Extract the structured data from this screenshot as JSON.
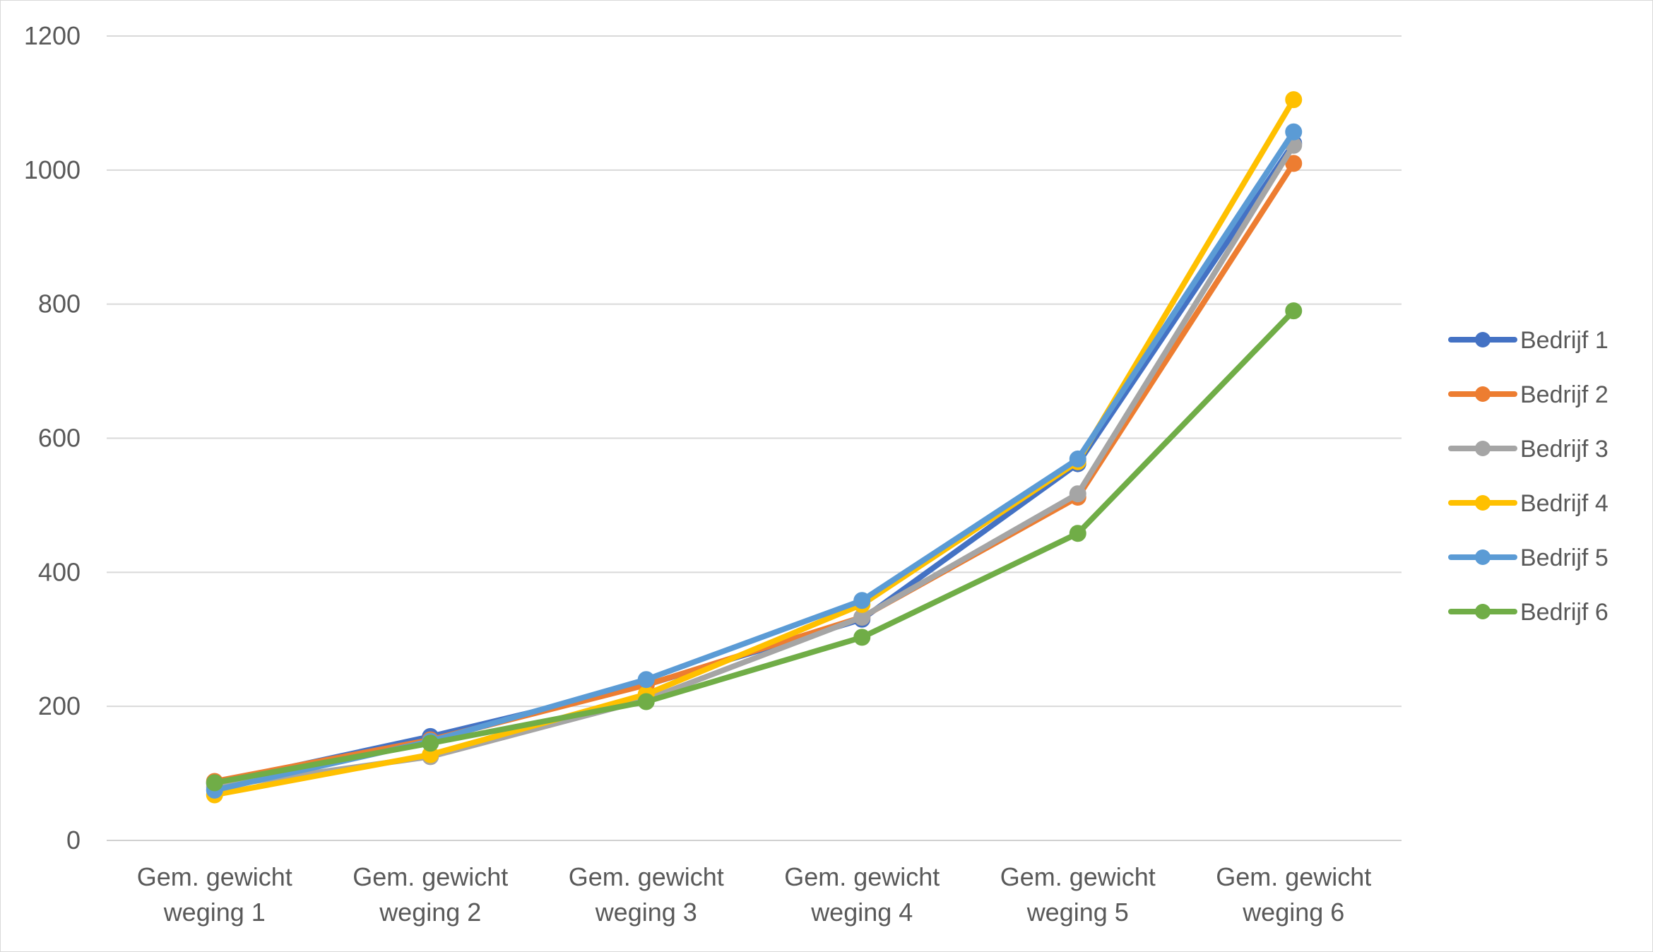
{
  "chart_data": {
    "type": "line",
    "title": "",
    "xlabel": "",
    "ylabel": "",
    "ylim": [
      0,
      1200
    ],
    "yticks": [
      0,
      200,
      400,
      600,
      800,
      1000,
      1200
    ],
    "grid": true,
    "legend_position": "right",
    "categories": [
      [
        "Gem. gewicht",
        "weging 1"
      ],
      [
        "Gem. gewicht",
        "weging 2"
      ],
      [
        "Gem. gewicht",
        "weging 3"
      ],
      [
        "Gem. gewicht",
        "weging 4"
      ],
      [
        "Gem. gewicht",
        "weging 5"
      ],
      [
        "Gem. gewicht",
        "weging 6"
      ]
    ],
    "series": [
      {
        "name": "Bedrijf 1",
        "color": "#4472C4",
        "values": [
          85,
          155,
          232,
          330,
          562,
          1040
        ]
      },
      {
        "name": "Bedrijf 2",
        "color": "#ED7D31",
        "values": [
          88,
          150,
          232,
          333,
          512,
          1010
        ]
      },
      {
        "name": "Bedrijf 3",
        "color": "#A5A5A5",
        "values": [
          80,
          125,
          210,
          333,
          517,
          1037
        ]
      },
      {
        "name": "Bedrijf 4",
        "color": "#FFC000",
        "values": [
          68,
          128,
          218,
          352,
          565,
          1105
        ]
      },
      {
        "name": "Bedrijf 5",
        "color": "#5B9BD5",
        "values": [
          75,
          148,
          240,
          358,
          569,
          1057
        ]
      },
      {
        "name": "Bedrijf 6",
        "color": "#70AD47",
        "values": [
          86,
          145,
          207,
          303,
          458,
          790
        ]
      }
    ]
  }
}
